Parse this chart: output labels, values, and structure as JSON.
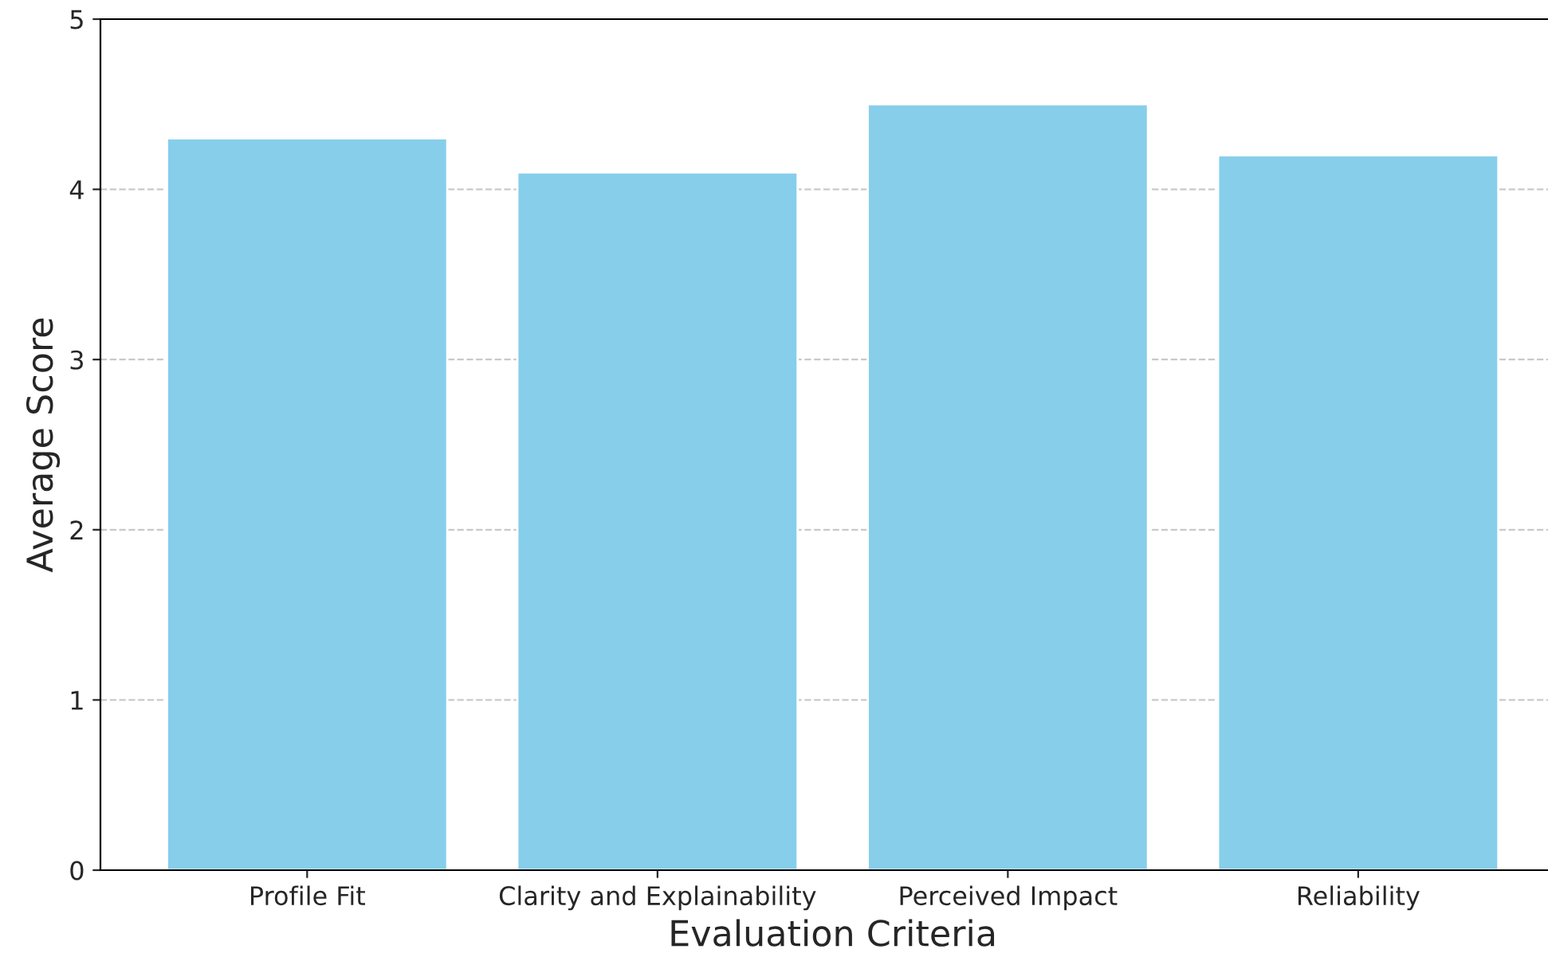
{
  "chart_data": {
    "type": "bar",
    "xlabel": "Evaluation Criteria",
    "ylabel": "Average Score",
    "categories": [
      "Profile Fit",
      "Clarity and Explainability",
      "Perceived Impact",
      "Reliability"
    ],
    "values": [
      4.3,
      4.1,
      4.5,
      4.2
    ],
    "color": "#87ceeb",
    "ylim": [
      0,
      5
    ],
    "yticks": [
      0,
      1,
      2,
      3,
      4,
      5
    ],
    "grid": "y"
  }
}
